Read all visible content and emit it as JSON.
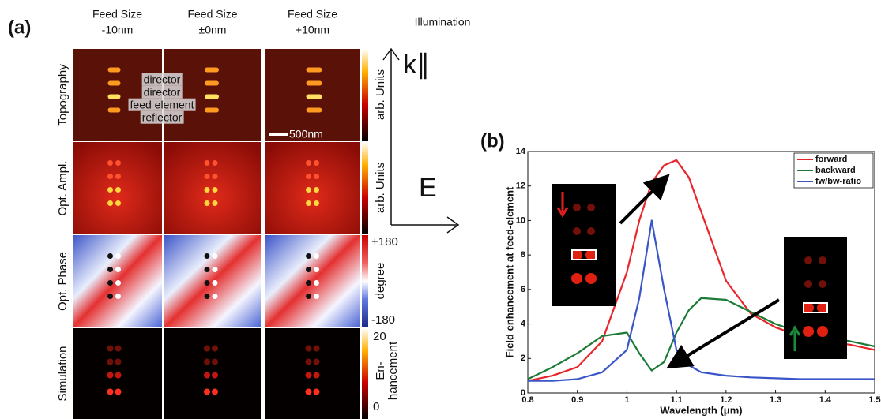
{
  "panel_a": {
    "label": "(a)",
    "columns": [
      [
        "Feed Size",
        "-10nm"
      ],
      [
        "Feed Size",
        "±0nm"
      ],
      [
        "Feed Size",
        "+10nm"
      ]
    ],
    "illumination": "Illumination",
    "rows": [
      "Topography",
      "Opt. Ampl.",
      "Opt. Phase",
      "Simulation"
    ],
    "element_labels": [
      "director",
      "director",
      "feed element",
      "reflector"
    ],
    "scale_bar": "500nm",
    "colorbars": [
      {
        "label": "arb. Units"
      },
      {
        "label": "arb. Units"
      },
      {
        "max": {
          "value": 180,
          "label": "+180"
        },
        "label": "degree",
        "min": -180
      },
      {
        "max": 20,
        "label": [
          "En-",
          "hancement"
        ],
        "min": 0
      }
    ],
    "illumination_axes": [
      "k∥",
      "E"
    ]
  },
  "chart_data": {
    "type": "line",
    "panel_label": "(b)",
    "xlabel": "Wavelength (μm)",
    "ylabel": "Field enhancement at feed-element",
    "x": [
      0.8,
      0.85,
      0.9,
      0.95,
      1.0,
      1.025,
      1.05,
      1.075,
      1.1,
      1.125,
      1.15,
      1.2,
      1.25,
      1.3,
      1.35,
      1.4,
      1.45,
      1.5
    ],
    "series": [
      {
        "name": "forward",
        "color": "#e8262a",
        "values": [
          0.7,
          1.0,
          1.5,
          3,
          7,
          10,
          12.2,
          13.2,
          13.5,
          12.5,
          10.5,
          6.5,
          4.6,
          3.8,
          3.3,
          3.0,
          2.8,
          2.5
        ]
      },
      {
        "name": "backward",
        "color": "#1b7a36",
        "values": [
          0.8,
          1.5,
          2.3,
          3.3,
          3.5,
          2.3,
          1.3,
          1.8,
          3.5,
          4.8,
          5.5,
          5.4,
          4.7,
          4.0,
          3.5,
          3.2,
          3.0,
          2.7
        ]
      },
      {
        "name": "fw/bw-ratio",
        "color": "#3a55c8",
        "values": [
          0.7,
          0.7,
          0.8,
          1.2,
          2.5,
          5.5,
          10,
          6,
          2.5,
          1.6,
          1.2,
          1.0,
          0.9,
          0.85,
          0.8,
          0.8,
          0.8,
          0.8
        ]
      }
    ],
    "xlim": [
      0.8,
      1.5
    ],
    "ylim": [
      0,
      14
    ],
    "xticks": [
      0.8,
      0.9,
      1,
      1.1,
      1.2,
      1.3,
      1.4,
      1.5
    ],
    "yticks": [
      0,
      2,
      4,
      6,
      8,
      10,
      12,
      14
    ],
    "legend": "upper right"
  }
}
